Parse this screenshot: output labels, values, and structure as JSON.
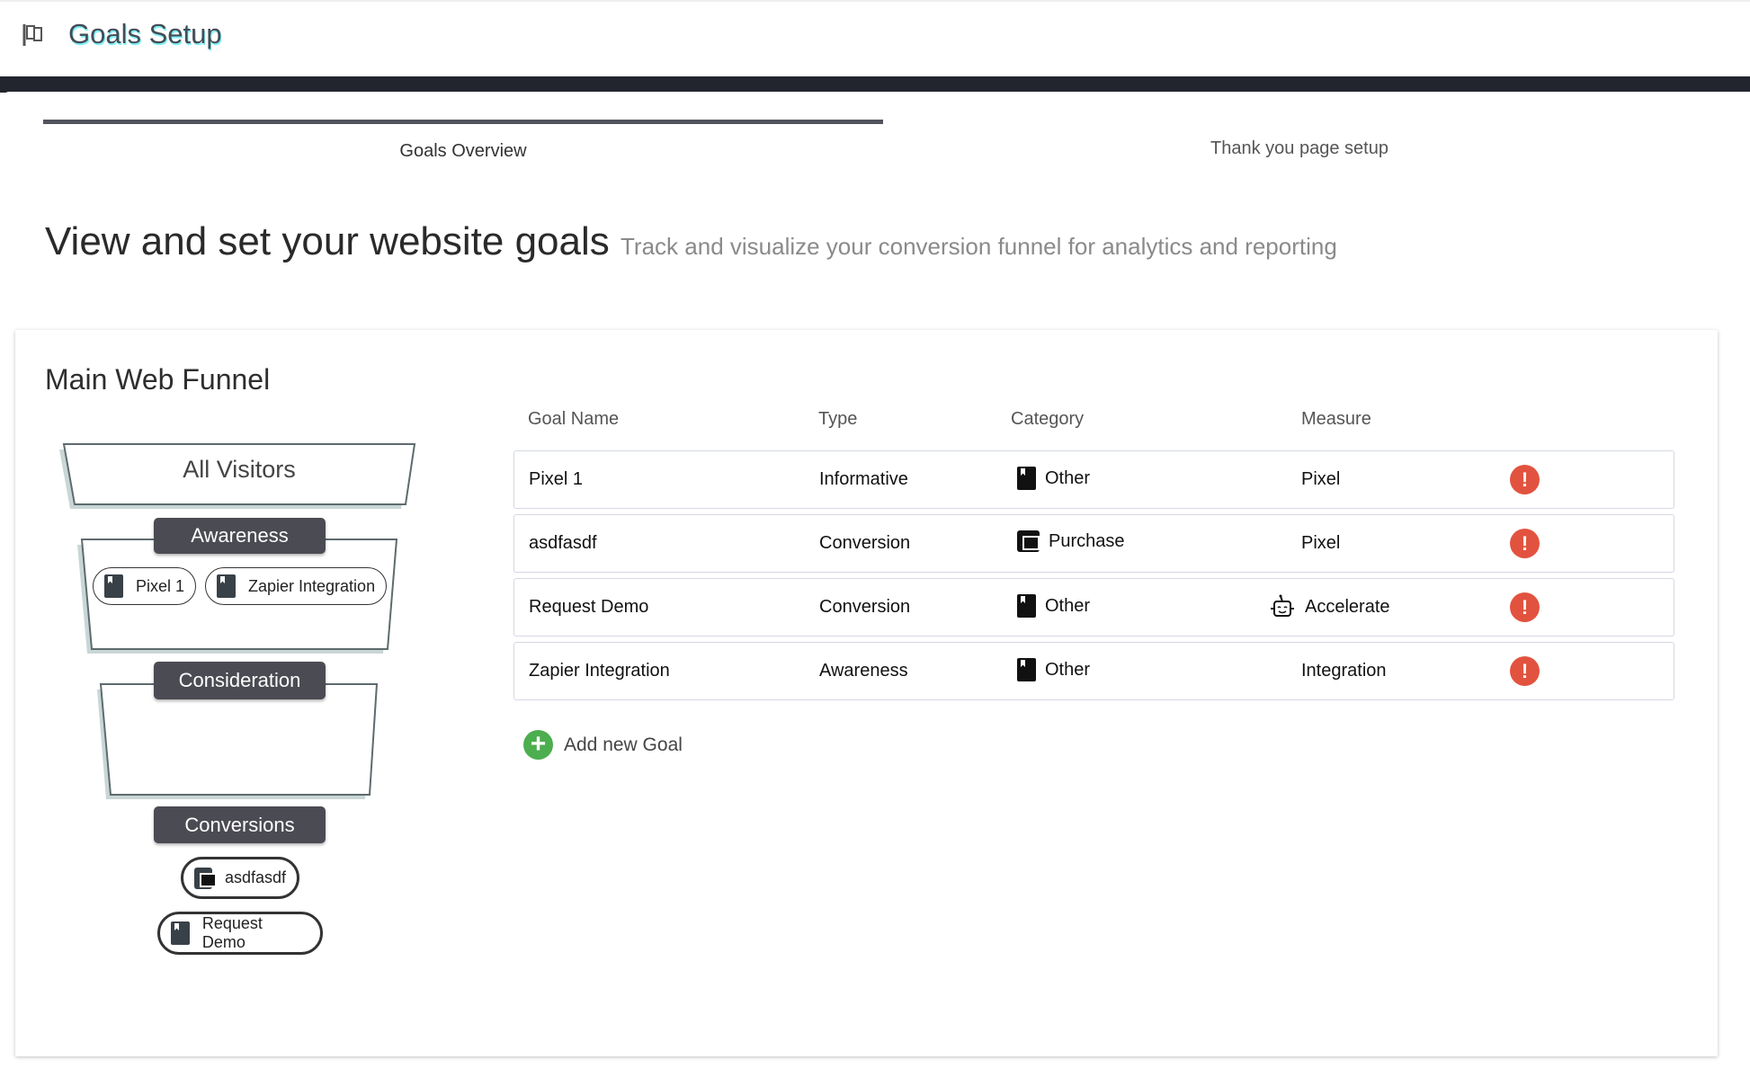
{
  "header": {
    "title": "Goals Setup",
    "icon": "flag-icon"
  },
  "tabs": [
    {
      "label": "Goals Overview",
      "active": true
    },
    {
      "label": "Thank you page setup",
      "active": false
    }
  ],
  "page": {
    "heading": "View and set your website goals",
    "subheading": "Track and visualize your conversion funnel for analytics and reporting"
  },
  "funnel": {
    "title": "Main Web Funnel",
    "top": "All Visitors",
    "stages": [
      {
        "label": "Awareness",
        "goals": [
          {
            "name": "Pixel 1",
            "icon": "book-icon"
          },
          {
            "name": "Zapier Integration",
            "icon": "book-icon"
          }
        ]
      },
      {
        "label": "Consideration",
        "goals": []
      },
      {
        "label": "Conversions",
        "goals": [
          {
            "name": "asdfasdf",
            "icon": "wallet-icon"
          },
          {
            "name": "Request Demo",
            "icon": "book-icon"
          }
        ]
      }
    ]
  },
  "table": {
    "headers": [
      "Goal Name",
      "Type",
      "Category",
      "Measure"
    ],
    "rows": [
      {
        "name": "Pixel 1",
        "type": "Informative",
        "category": "Other",
        "category_icon": "book-icon",
        "measure": "Pixel",
        "measure_icon": ""
      },
      {
        "name": "asdfasdf",
        "type": "Conversion",
        "category": "Purchase",
        "category_icon": "wallet-icon",
        "measure": "Pixel",
        "measure_icon": ""
      },
      {
        "name": "Request Demo",
        "type": "Conversion",
        "category": "Other",
        "category_icon": "book-icon",
        "measure": "Accelerate",
        "measure_icon": "robot-icon"
      },
      {
        "name": "Zapier Integration",
        "type": "Awareness",
        "category": "Other",
        "category_icon": "book-icon",
        "measure": "Integration",
        "measure_icon": ""
      }
    ],
    "alert_glyph": "!"
  },
  "add_goal": {
    "label": "Add new Goal",
    "glyph": "+"
  },
  "colors": {
    "alert": "#e2533f",
    "add": "#4cae4f",
    "label_bg": "#4b4b53",
    "dark_bar": "#22252d"
  }
}
